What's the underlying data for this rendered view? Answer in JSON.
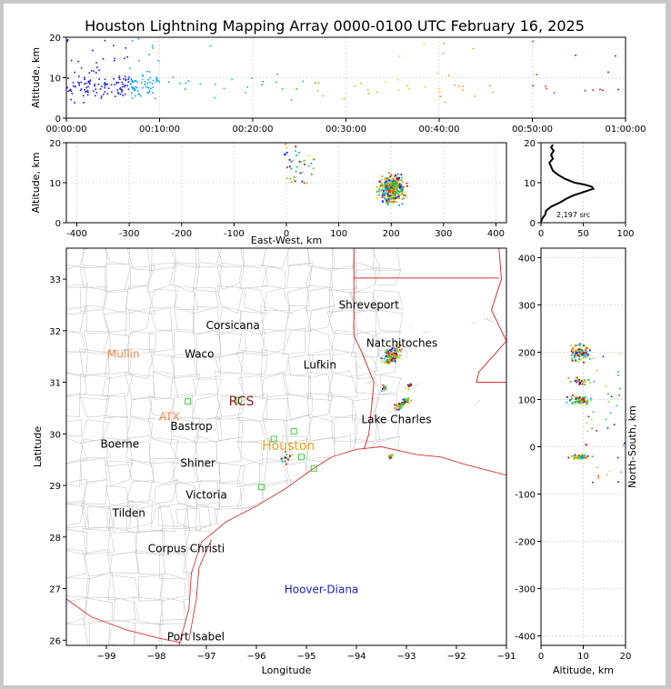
{
  "title": "Houston Lightning Mapping Array 0000-0100 UTC February 16, 2025",
  "chart_data": [
    {
      "id": "time-altitude",
      "type": "scatter",
      "ylabel": "Altitude, km",
      "xlim": [
        "00:00:00",
        "01:00:00"
      ],
      "ylim": [
        0,
        20
      ],
      "x_ticks": [
        "00:00:00",
        "00:10:00",
        "00:20:00",
        "00:30:00",
        "00:40:00",
        "00:50:00",
        "01:00:00"
      ],
      "y_ticks": [
        0,
        10,
        20
      ],
      "grid": true
    },
    {
      "id": "east-west-altitude",
      "type": "scatter",
      "xlabel": "East-West, km",
      "ylabel": "Altitude, km",
      "xlim": [
        -420,
        420
      ],
      "ylim": [
        0,
        20
      ],
      "x_ticks": [
        -400,
        -300,
        -200,
        -100,
        0,
        100,
        200,
        300,
        400
      ],
      "y_ticks": [
        0,
        10,
        20
      ],
      "grid": true
    },
    {
      "id": "altitude-histogram",
      "type": "line",
      "xlim": [
        0,
        100
      ],
      "ylim": [
        0,
        20
      ],
      "x_ticks": [
        0,
        50,
        100
      ],
      "y_ticks": [
        0,
        10,
        20
      ],
      "annotation": "2,197 src",
      "profile": [
        [
          0,
          0.2
        ],
        [
          2,
          1.2
        ],
        [
          5,
          2
        ],
        [
          6,
          3
        ],
        [
          12,
          4
        ],
        [
          22,
          5
        ],
        [
          30,
          6
        ],
        [
          38,
          6.8
        ],
        [
          48,
          7.5
        ],
        [
          55,
          8
        ],
        [
          62,
          8.5
        ],
        [
          60,
          9
        ],
        [
          52,
          9.5
        ],
        [
          40,
          10
        ],
        [
          28,
          11
        ],
        [
          20,
          12
        ],
        [
          14,
          13
        ],
        [
          12,
          14
        ],
        [
          10,
          15
        ],
        [
          14,
          16
        ],
        [
          12,
          17
        ],
        [
          15,
          18
        ],
        [
          12,
          18.8
        ],
        [
          14,
          19.5
        ]
      ]
    },
    {
      "id": "plan-view-map",
      "type": "scatter",
      "xlabel": "Longitude",
      "ylabel": "Latitude",
      "xlim": [
        -99.8,
        -91
      ],
      "ylim": [
        25.9,
        33.6
      ],
      "x_ticks": [
        -99,
        -98,
        -97,
        -96,
        -95,
        -94,
        -93,
        -92,
        -91
      ],
      "y_ticks": [
        26,
        27,
        28,
        29,
        30,
        31,
        32,
        33
      ],
      "cities": [
        {
          "name": "Shreveport",
          "lon": -93.75,
          "lat": 32.5,
          "color": "#000000"
        },
        {
          "name": "Corsicana",
          "lon": -96.47,
          "lat": 32.1,
          "color": "#000000"
        },
        {
          "name": "Natchitoches",
          "lon": -93.09,
          "lat": 31.76,
          "color": "#000000"
        },
        {
          "name": "Mullin",
          "lon": -98.66,
          "lat": 31.55,
          "color": "#f08c4a"
        },
        {
          "name": "Waco",
          "lon": -97.14,
          "lat": 31.55,
          "color": "#000000"
        },
        {
          "name": "Lufkin",
          "lon": -94.73,
          "lat": 31.34,
          "color": "#000000"
        },
        {
          "name": "RCS",
          "lon": -96.3,
          "lat": 30.62,
          "color": "#8b1a1a"
        },
        {
          "name": "ATX",
          "lon": -97.74,
          "lat": 30.33,
          "color": "#f08c4a"
        },
        {
          "name": "Bastrop",
          "lon": -97.3,
          "lat": 30.15,
          "color": "#000000"
        },
        {
          "name": "Lake Charles",
          "lon": -93.2,
          "lat": 30.28,
          "color": "#000000"
        },
        {
          "name": "Boerne",
          "lon": -98.73,
          "lat": 29.8,
          "color": "#000000"
        },
        {
          "name": "Houston",
          "lon": -95.36,
          "lat": 29.76,
          "color": "#f0a020"
        },
        {
          "name": "Shiner",
          "lon": -97.17,
          "lat": 29.43,
          "color": "#000000"
        },
        {
          "name": "Victoria",
          "lon": -97.0,
          "lat": 28.82,
          "color": "#000000"
        },
        {
          "name": "Tilden",
          "lon": -98.55,
          "lat": 28.46,
          "color": "#000000"
        },
        {
          "name": "Corpus Christi",
          "lon": -97.4,
          "lat": 27.78,
          "color": "#000000"
        },
        {
          "name": "Hoover-Diana",
          "lon": -94.7,
          "lat": 26.98,
          "color": "#1a1ad0"
        },
        {
          "name": "Port Isabel",
          "lon": -97.21,
          "lat": 26.07,
          "color": "#000000"
        }
      ],
      "stations": [
        {
          "lon": -97.37,
          "lat": 30.63
        },
        {
          "lon": -96.35,
          "lat": 30.65
        },
        {
          "lon": -95.25,
          "lat": 30.05
        },
        {
          "lon": -95.65,
          "lat": 29.9
        },
        {
          "lon": -95.1,
          "lat": 29.55
        },
        {
          "lon": -94.85,
          "lat": 29.33
        },
        {
          "lon": -95.9,
          "lat": 28.97
        }
      ],
      "clusters": [
        {
          "lon": -93.3,
          "lat": 31.55,
          "spread_lon": 0.18,
          "spread_lat": 0.15,
          "count": 140
        },
        {
          "lon": -93.45,
          "lat": 30.9,
          "spread_lon": 0.05,
          "spread_lat": 0.07,
          "count": 20
        },
        {
          "lon": -92.95,
          "lat": 30.95,
          "spread_lon": 0.06,
          "spread_lat": 0.06,
          "count": 18
        },
        {
          "lon": -93.1,
          "lat": 30.6,
          "spread_lon": 0.15,
          "spread_lat": 0.06,
          "count": 80
        },
        {
          "lon": -93.33,
          "lat": 29.58,
          "spread_lon": 0.04,
          "spread_lat": 0.04,
          "count": 25
        },
        {
          "lon": -95.4,
          "lat": 29.6,
          "spread_lon": 0.15,
          "spread_lat": 0.12,
          "count": 18
        }
      ]
    },
    {
      "id": "altitude-north-south",
      "type": "scatter",
      "xlabel": "Altitude, km",
      "ylabel": "North-South, km",
      "xlim": [
        0,
        20
      ],
      "ylim": [
        -420,
        420
      ],
      "x_ticks": [
        0,
        10,
        20
      ],
      "y_ticks": [
        -400,
        -300,
        -200,
        -100,
        0,
        100,
        200,
        300,
        400
      ],
      "grid": true
    }
  ]
}
